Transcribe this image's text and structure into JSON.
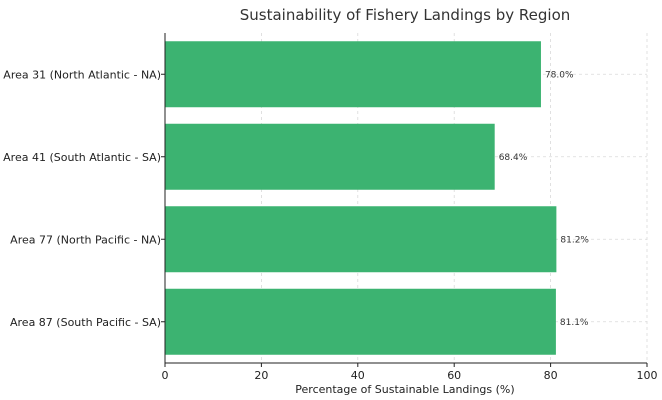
{
  "chart_data": {
    "type": "bar",
    "orientation": "horizontal",
    "title": "Sustainability of Fishery Landings by Region",
    "xlabel": "Percentage of Sustainable Landings (%)",
    "ylabel": "",
    "categories": [
      "Area 31 (North Atlantic - NA)",
      "Area 41 (South Atlantic - SA)",
      "Area 77 (North Pacific - NA)",
      "Area 87 (South Pacific - SA)"
    ],
    "values": [
      78.0,
      68.4,
      81.2,
      81.1
    ],
    "value_labels": [
      "78.0%",
      "68.4%",
      "81.2%",
      "81.1%"
    ],
    "xlim": [
      0,
      100
    ],
    "xticks": [
      0,
      20,
      40,
      60,
      80,
      100
    ],
    "xtick_labels": [
      "0",
      "20",
      "40",
      "60",
      "80",
      "100"
    ],
    "grid": true,
    "bar_color": "#3cb371"
  }
}
